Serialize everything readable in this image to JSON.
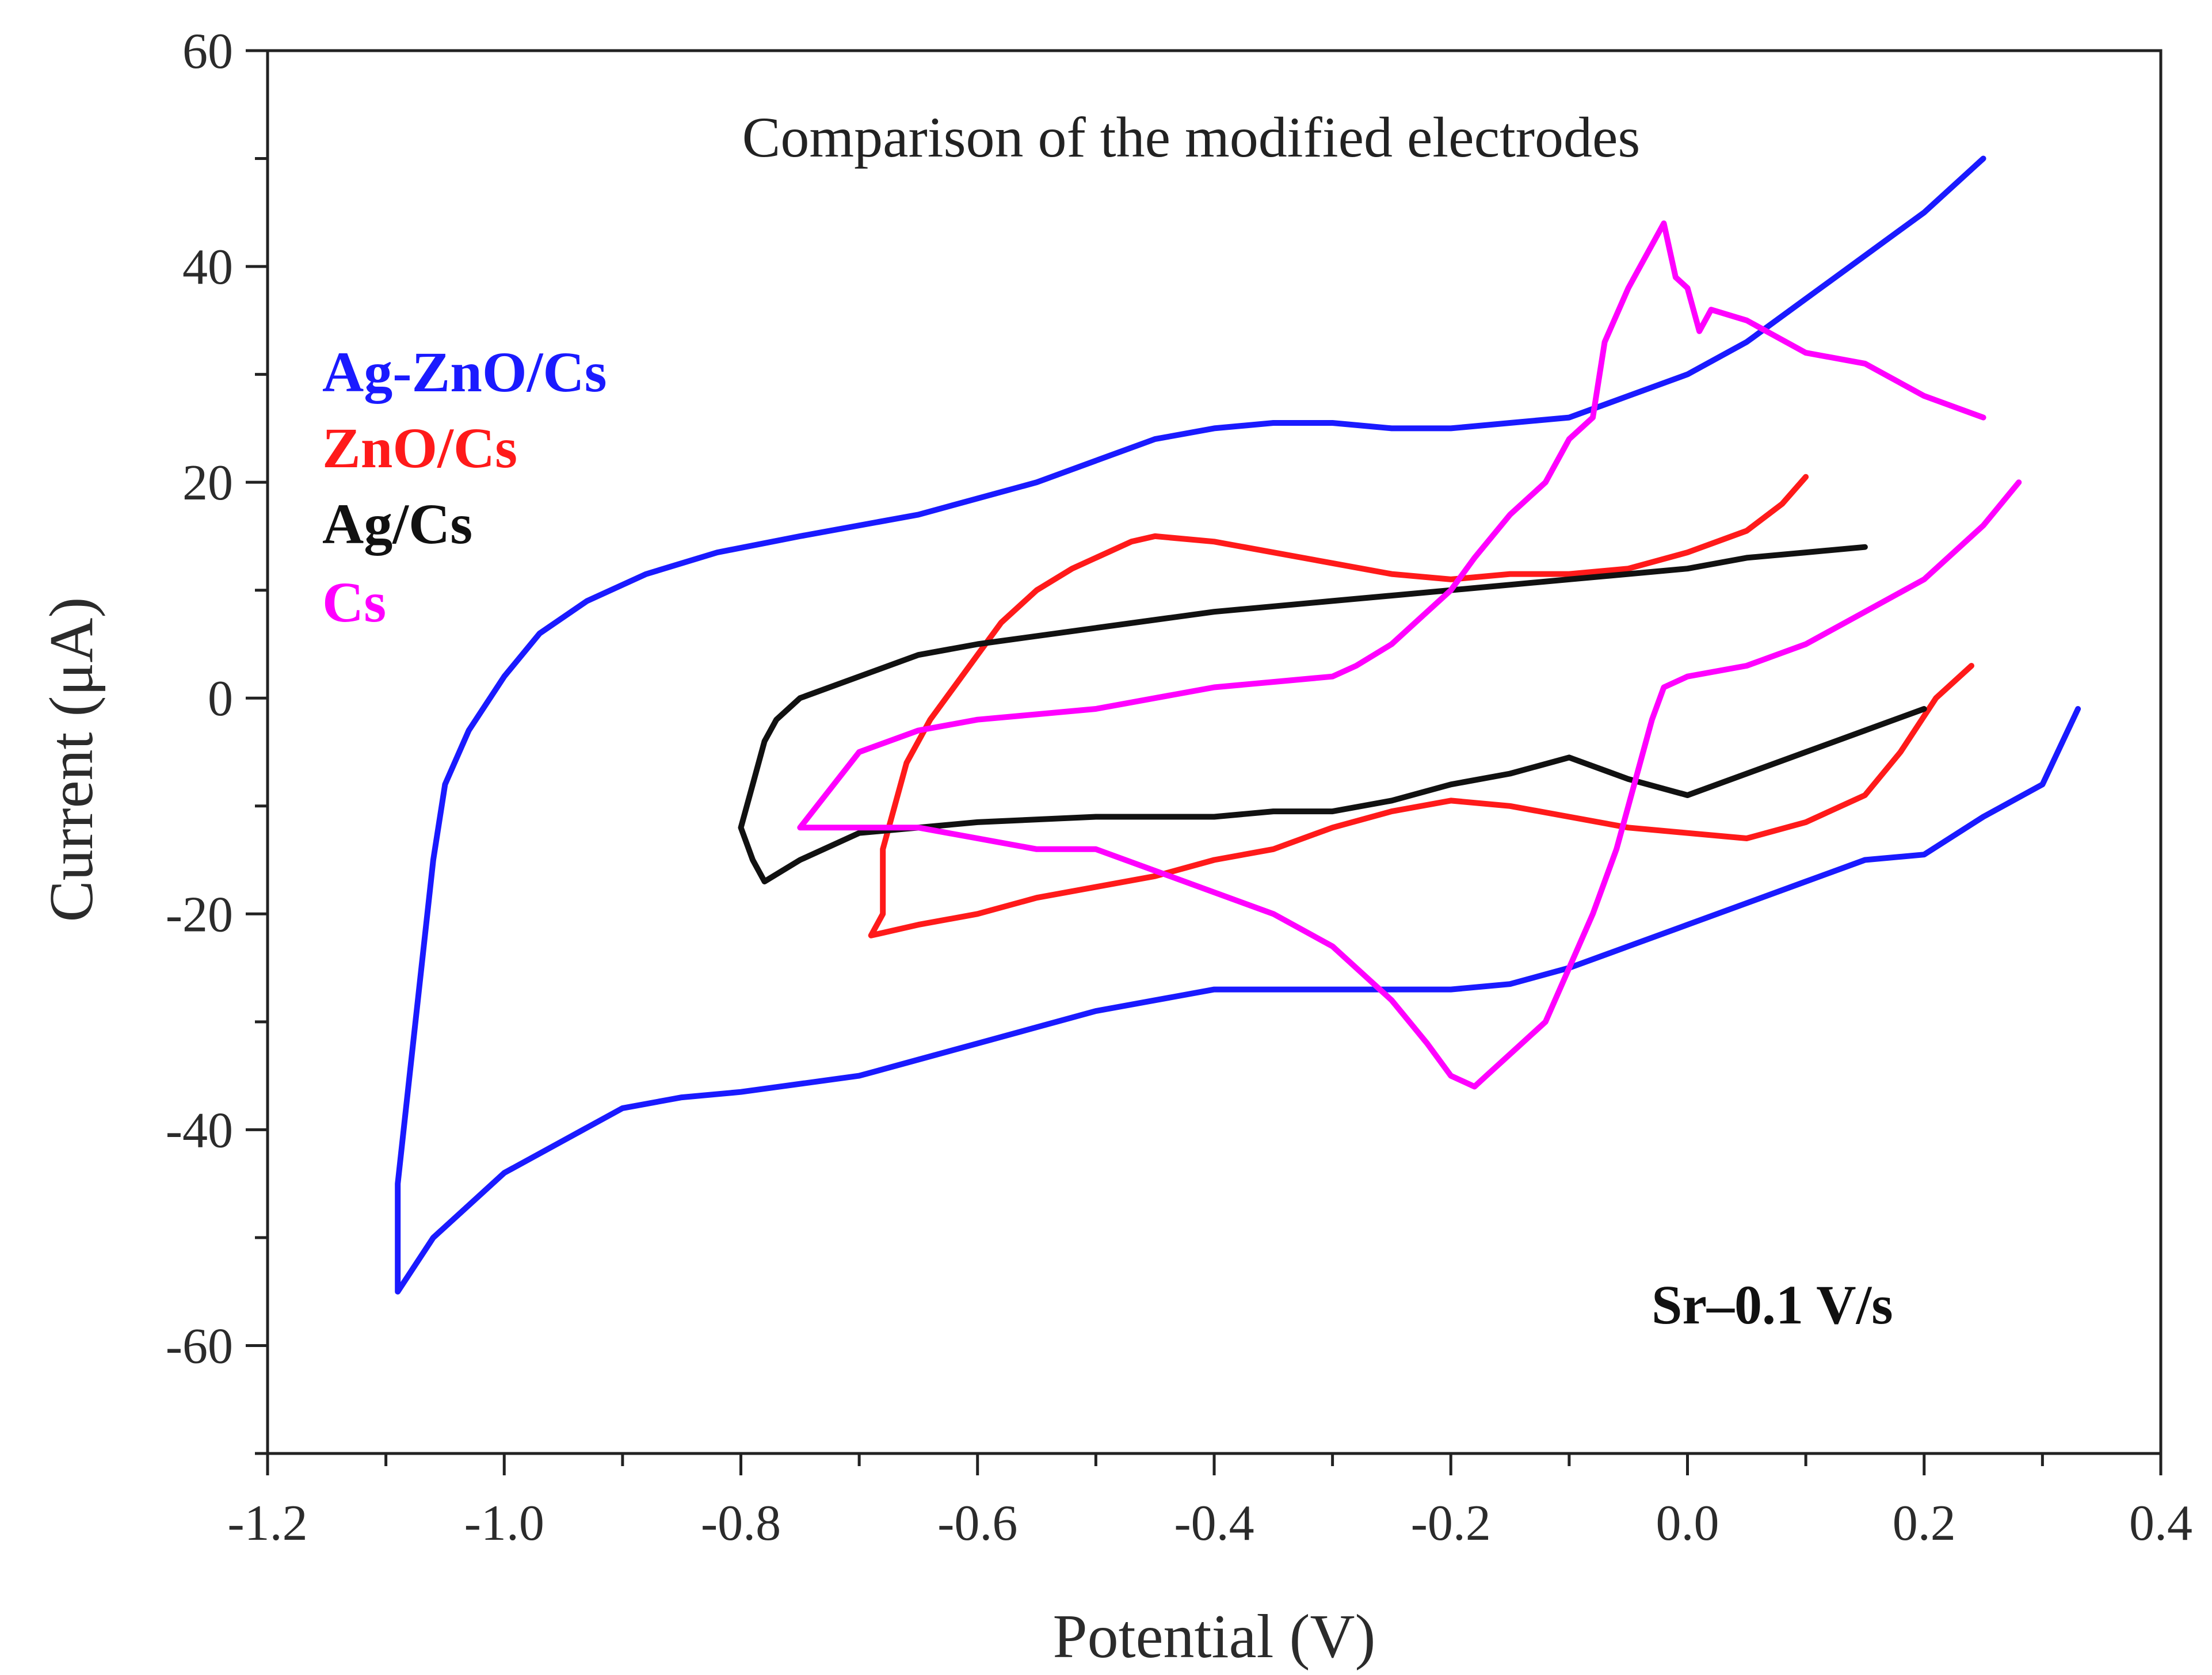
{
  "chart_data": {
    "type": "line",
    "title": "Comparison of the modified electrodes",
    "xlabel": "Potential (V)",
    "ylabel": "Current (μA)",
    "xlim": [
      -1.2,
      0.4
    ],
    "ylim": [
      -70,
      60
    ],
    "xticks": [
      -1.2,
      -1.0,
      -0.8,
      -0.6,
      -0.4,
      -0.2,
      0.0,
      0.2,
      0.4
    ],
    "xtick_labels": [
      "-1.2",
      "-1.0",
      "-0.8",
      "-0.6",
      "-0.4",
      "-0.2",
      "0.0",
      "0.2",
      "0.4"
    ],
    "yticks": [
      60,
      40,
      20,
      0,
      -20,
      -40,
      -60
    ],
    "ytick_labels": [
      "60",
      "40",
      "20",
      "0",
      "-20",
      "-40",
      "-60"
    ],
    "annotation": "Sr–0.1 V/s",
    "legend_position": "left",
    "series": [
      {
        "name": "Ag-ZnO/Cs",
        "color": "#1a1aff",
        "points": [
          [
            0.33,
            -1
          ],
          [
            0.3,
            -8
          ],
          [
            0.25,
            -11
          ],
          [
            0.2,
            -14.5
          ],
          [
            0.15,
            -15
          ],
          [
            0.1,
            -17
          ],
          [
            0.05,
            -19
          ],
          [
            0.0,
            -21
          ],
          [
            -0.05,
            -23
          ],
          [
            -0.1,
            -25
          ],
          [
            -0.15,
            -26.5
          ],
          [
            -0.2,
            -27
          ],
          [
            -0.25,
            -27
          ],
          [
            -0.3,
            -27
          ],
          [
            -0.35,
            -27
          ],
          [
            -0.4,
            -27
          ],
          [
            -0.45,
            -28
          ],
          [
            -0.5,
            -29
          ],
          [
            -0.55,
            -30.5
          ],
          [
            -0.6,
            -32
          ],
          [
            -0.65,
            -33.5
          ],
          [
            -0.7,
            -35
          ],
          [
            -0.8,
            -36.5
          ],
          [
            -0.85,
            -37
          ],
          [
            -0.9,
            -38
          ],
          [
            -0.95,
            -41
          ],
          [
            -1.0,
            -44
          ],
          [
            -1.03,
            -47
          ],
          [
            -1.06,
            -50
          ],
          [
            -1.09,
            -55
          ],
          [
            -1.09,
            -45
          ],
          [
            -1.08,
            -35
          ],
          [
            -1.07,
            -25
          ],
          [
            -1.06,
            -15
          ],
          [
            -1.05,
            -8
          ],
          [
            -1.03,
            -3
          ],
          [
            -1.0,
            2
          ],
          [
            -0.97,
            6
          ],
          [
            -0.93,
            9
          ],
          [
            -0.88,
            11.5
          ],
          [
            -0.82,
            13.5
          ],
          [
            -0.75,
            15
          ],
          [
            -0.65,
            17
          ],
          [
            -0.55,
            20
          ],
          [
            -0.5,
            22
          ],
          [
            -0.45,
            24
          ],
          [
            -0.4,
            25
          ],
          [
            -0.35,
            25.5
          ],
          [
            -0.3,
            25.5
          ],
          [
            -0.25,
            25
          ],
          [
            -0.2,
            25
          ],
          [
            -0.15,
            25.5
          ],
          [
            -0.1,
            26
          ],
          [
            -0.05,
            28
          ],
          [
            0.0,
            30
          ],
          [
            0.05,
            33
          ],
          [
            0.1,
            37
          ],
          [
            0.15,
            41
          ],
          [
            0.2,
            45
          ],
          [
            0.25,
            50
          ]
        ]
      },
      {
        "name": "ZnO/Cs",
        "color": "#ff1a1a",
        "points": [
          [
            0.24,
            3
          ],
          [
            0.21,
            0
          ],
          [
            0.18,
            -5
          ],
          [
            0.15,
            -9
          ],
          [
            0.1,
            -11.5
          ],
          [
            0.05,
            -13
          ],
          [
            0.0,
            -12.5
          ],
          [
            -0.05,
            -12
          ],
          [
            -0.1,
            -11
          ],
          [
            -0.15,
            -10
          ],
          [
            -0.2,
            -9.5
          ],
          [
            -0.25,
            -10.5
          ],
          [
            -0.3,
            -12
          ],
          [
            -0.35,
            -14
          ],
          [
            -0.4,
            -15
          ],
          [
            -0.45,
            -16.5
          ],
          [
            -0.5,
            -17.5
          ],
          [
            -0.55,
            -18.5
          ],
          [
            -0.6,
            -20
          ],
          [
            -0.65,
            -21
          ],
          [
            -0.69,
            -22
          ],
          [
            -0.68,
            -20
          ],
          [
            -0.68,
            -14
          ],
          [
            -0.67,
            -10
          ],
          [
            -0.66,
            -6
          ],
          [
            -0.64,
            -2
          ],
          [
            -0.62,
            1
          ],
          [
            -0.6,
            4
          ],
          [
            -0.58,
            7
          ],
          [
            -0.55,
            10
          ],
          [
            -0.52,
            12
          ],
          [
            -0.5,
            13
          ],
          [
            -0.47,
            14.5
          ],
          [
            -0.45,
            15
          ],
          [
            -0.4,
            14.5
          ],
          [
            -0.35,
            13.5
          ],
          [
            -0.3,
            12.5
          ],
          [
            -0.25,
            11.5
          ],
          [
            -0.2,
            11
          ],
          [
            -0.15,
            11.5
          ],
          [
            -0.1,
            11.5
          ],
          [
            -0.05,
            12
          ],
          [
            0.0,
            13.5
          ],
          [
            0.05,
            15.5
          ],
          [
            0.08,
            18
          ],
          [
            0.1,
            20.5
          ]
        ]
      },
      {
        "name": "Ag/Cs",
        "color": "#111111",
        "points": [
          [
            0.2,
            -1
          ],
          [
            0.15,
            -3
          ],
          [
            0.1,
            -5
          ],
          [
            0.05,
            -7
          ],
          [
            0.0,
            -9
          ],
          [
            -0.05,
            -7.5
          ],
          [
            -0.1,
            -5.5
          ],
          [
            -0.15,
            -7
          ],
          [
            -0.2,
            -8
          ],
          [
            -0.25,
            -9.5
          ],
          [
            -0.3,
            -10.5
          ],
          [
            -0.35,
            -10.5
          ],
          [
            -0.4,
            -11
          ],
          [
            -0.5,
            -11
          ],
          [
            -0.6,
            -11.5
          ],
          [
            -0.7,
            -12.5
          ],
          [
            -0.75,
            -15
          ],
          [
            -0.78,
            -17
          ],
          [
            -0.79,
            -15
          ],
          [
            -0.8,
            -12
          ],
          [
            -0.79,
            -8
          ],
          [
            -0.78,
            -4
          ],
          [
            -0.77,
            -2
          ],
          [
            -0.75,
            0
          ],
          [
            -0.7,
            2
          ],
          [
            -0.65,
            4
          ],
          [
            -0.6,
            5
          ],
          [
            -0.5,
            6.5
          ],
          [
            -0.4,
            8
          ],
          [
            -0.3,
            9
          ],
          [
            -0.2,
            10
          ],
          [
            -0.1,
            11
          ],
          [
            0.0,
            12
          ],
          [
            0.05,
            13
          ],
          [
            0.1,
            13.5
          ],
          [
            0.15,
            14
          ]
        ]
      },
      {
        "name": "Cs",
        "color": "#ff00ff",
        "points": [
          [
            0.25,
            26
          ],
          [
            0.2,
            28
          ],
          [
            0.15,
            31
          ],
          [
            0.1,
            32
          ],
          [
            0.05,
            35
          ],
          [
            0.02,
            36
          ],
          [
            0.01,
            34
          ],
          [
            0.0,
            38
          ],
          [
            -0.01,
            39
          ],
          [
            -0.02,
            44
          ],
          [
            -0.03,
            42
          ],
          [
            -0.04,
            40
          ],
          [
            -0.05,
            38
          ],
          [
            -0.07,
            33
          ],
          [
            -0.08,
            26
          ],
          [
            -0.1,
            24
          ],
          [
            -0.12,
            20
          ],
          [
            -0.15,
            17
          ],
          [
            -0.18,
            13
          ],
          [
            -0.2,
            10
          ],
          [
            -0.22,
            8
          ],
          [
            -0.25,
            5
          ],
          [
            -0.28,
            3
          ],
          [
            -0.3,
            2
          ],
          [
            -0.35,
            1.5
          ],
          [
            -0.4,
            1
          ],
          [
            -0.45,
            0
          ],
          [
            -0.5,
            -1
          ],
          [
            -0.55,
            -1.5
          ],
          [
            -0.6,
            -2
          ],
          [
            -0.65,
            -3
          ],
          [
            -0.7,
            -5
          ],
          [
            -0.75,
            -12
          ],
          [
            -0.7,
            -12
          ],
          [
            -0.65,
            -12
          ],
          [
            -0.6,
            -13
          ],
          [
            -0.55,
            -14
          ],
          [
            -0.5,
            -14
          ],
          [
            -0.45,
            -16
          ],
          [
            -0.4,
            -18
          ],
          [
            -0.35,
            -20
          ],
          [
            -0.3,
            -23
          ],
          [
            -0.25,
            -28
          ],
          [
            -0.22,
            -32
          ],
          [
            -0.2,
            -35
          ],
          [
            -0.18,
            -36
          ],
          [
            -0.17,
            -35
          ],
          [
            -0.15,
            -33
          ],
          [
            -0.12,
            -30
          ],
          [
            -0.1,
            -25
          ],
          [
            -0.08,
            -20
          ],
          [
            -0.06,
            -14
          ],
          [
            -0.05,
            -10
          ],
          [
            -0.04,
            -6
          ],
          [
            -0.03,
            -2
          ],
          [
            -0.02,
            1
          ],
          [
            0.0,
            2
          ],
          [
            0.05,
            3
          ],
          [
            0.1,
            5
          ],
          [
            0.15,
            8
          ],
          [
            0.2,
            11
          ],
          [
            0.25,
            16
          ],
          [
            0.28,
            20
          ]
        ]
      }
    ]
  }
}
